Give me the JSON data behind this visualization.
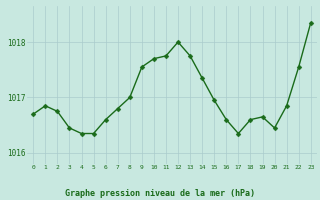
{
  "x": [
    0,
    1,
    2,
    3,
    4,
    5,
    6,
    7,
    8,
    9,
    10,
    11,
    12,
    13,
    14,
    15,
    16,
    17,
    18,
    19,
    20,
    21,
    22,
    23
  ],
  "y": [
    1016.7,
    1016.85,
    1016.75,
    1016.45,
    1016.35,
    1016.35,
    1016.6,
    1016.8,
    1017.0,
    1017.55,
    1017.7,
    1017.75,
    1018.0,
    1017.75,
    1017.35,
    1016.95,
    1016.6,
    1016.35,
    1016.6,
    1016.65,
    1016.45,
    1016.85,
    1017.55,
    1018.35
  ],
  "line_color": "#1a6b1a",
  "marker_color": "#1a6b1a",
  "bg_color": "#c8e8e0",
  "grid_color": "#aacccc",
  "xlabel": "Graphe pression niveau de la mer (hPa)",
  "xlabel_color": "#1a6b1a",
  "tick_label_color": "#1a6b1a",
  "ylim": [
    1015.8,
    1018.65
  ],
  "yticks": [
    1016,
    1017,
    1018
  ],
  "xticks": [
    0,
    1,
    2,
    3,
    4,
    5,
    6,
    7,
    8,
    9,
    10,
    11,
    12,
    13,
    14,
    15,
    16,
    17,
    18,
    19,
    20,
    21,
    22,
    23
  ],
  "marker_size": 2.5,
  "line_width": 1.0
}
